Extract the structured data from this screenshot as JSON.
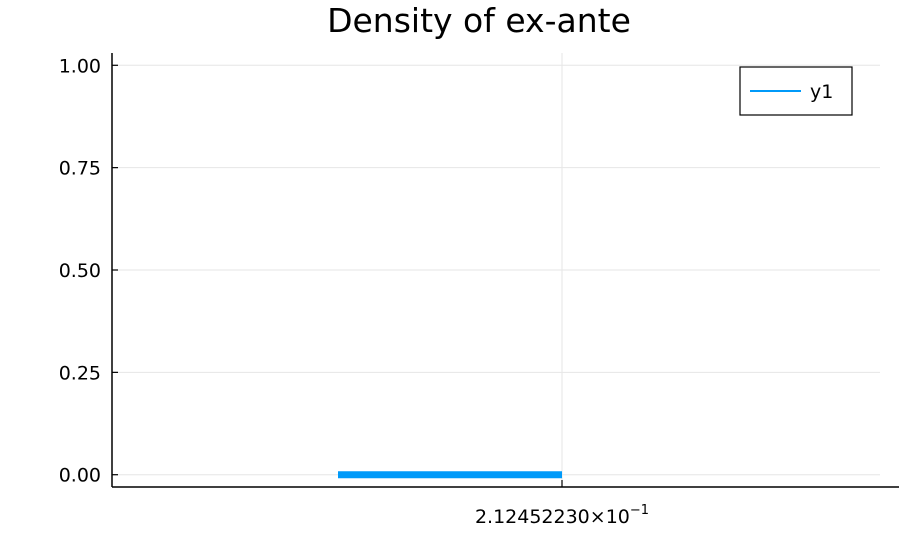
{
  "chart_data": {
    "type": "line",
    "title": "Density of ex-ante",
    "xlabel": "",
    "ylabel": "",
    "x_tick_mantissa": "2.12452230×10",
    "x_tick_exponent": "−1",
    "y_ticks": [
      "0.00",
      "0.25",
      "0.50",
      "0.75",
      "1.00"
    ],
    "ylim": [
      -0.03,
      1.03
    ],
    "grid": true,
    "legend_position": "top-right",
    "series": [
      {
        "name": "y1",
        "color": "#009af9",
        "segment": [
          {
            "x": -0.5,
            "y": 0
          },
          {
            "x": 0,
            "y": 0
          }
        ]
      }
    ]
  }
}
